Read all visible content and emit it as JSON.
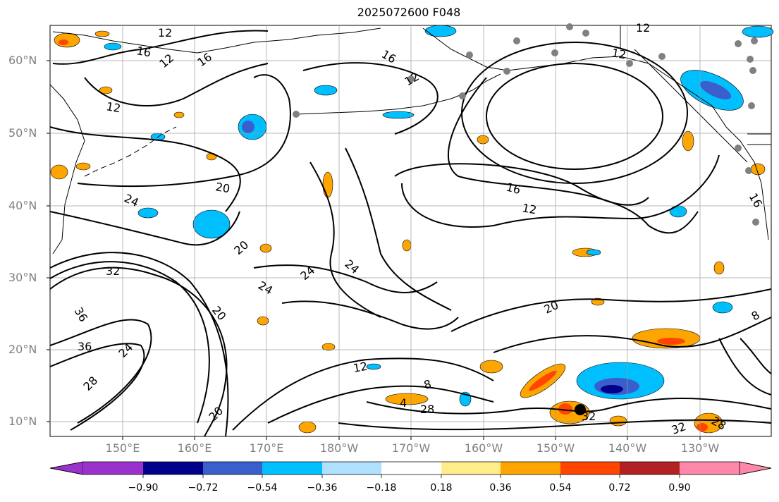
{
  "title": "2025072600 F048",
  "lat_labels": [
    "60°N",
    "50°N",
    "40°N",
    "30°N",
    "20°N",
    "10°N"
  ],
  "lon_labels": [
    "150°E",
    "160°E",
    "170°E",
    "180°W",
    "170°W",
    "160°W",
    "150°W",
    "140°W",
    "130°W"
  ],
  "colorbar": {
    "tick_labels": [
      "−0.90",
      "−0.72",
      "−0.54",
      "−0.36",
      "−0.18",
      "0.18",
      "0.36",
      "0.54",
      "0.72",
      "0.90"
    ],
    "colors": [
      "#9932cc",
      "#00008b",
      "#3a5fcd",
      "#00bfff",
      "#b0e0ff",
      "#ffffff",
      "#ffec8b",
      "#ffa500",
      "#ff4500",
      "#b22222",
      "#ff88aa"
    ]
  },
  "contour_labels": [
    "12",
    "16",
    "12",
    "16",
    "12",
    "16",
    "12",
    "12",
    "12",
    "16",
    "12",
    "20",
    "24",
    "20",
    "24",
    "24",
    "24",
    "32",
    "36",
    "36",
    "24",
    "28",
    "20",
    "20",
    "12",
    "8",
    "4",
    "28",
    "32",
    "32",
    "28",
    "8",
    "16",
    "20"
  ],
  "colors": {
    "land_outline": "#000000",
    "grid": "#999999",
    "stations": "#808080",
    "contour": "#000000"
  }
}
